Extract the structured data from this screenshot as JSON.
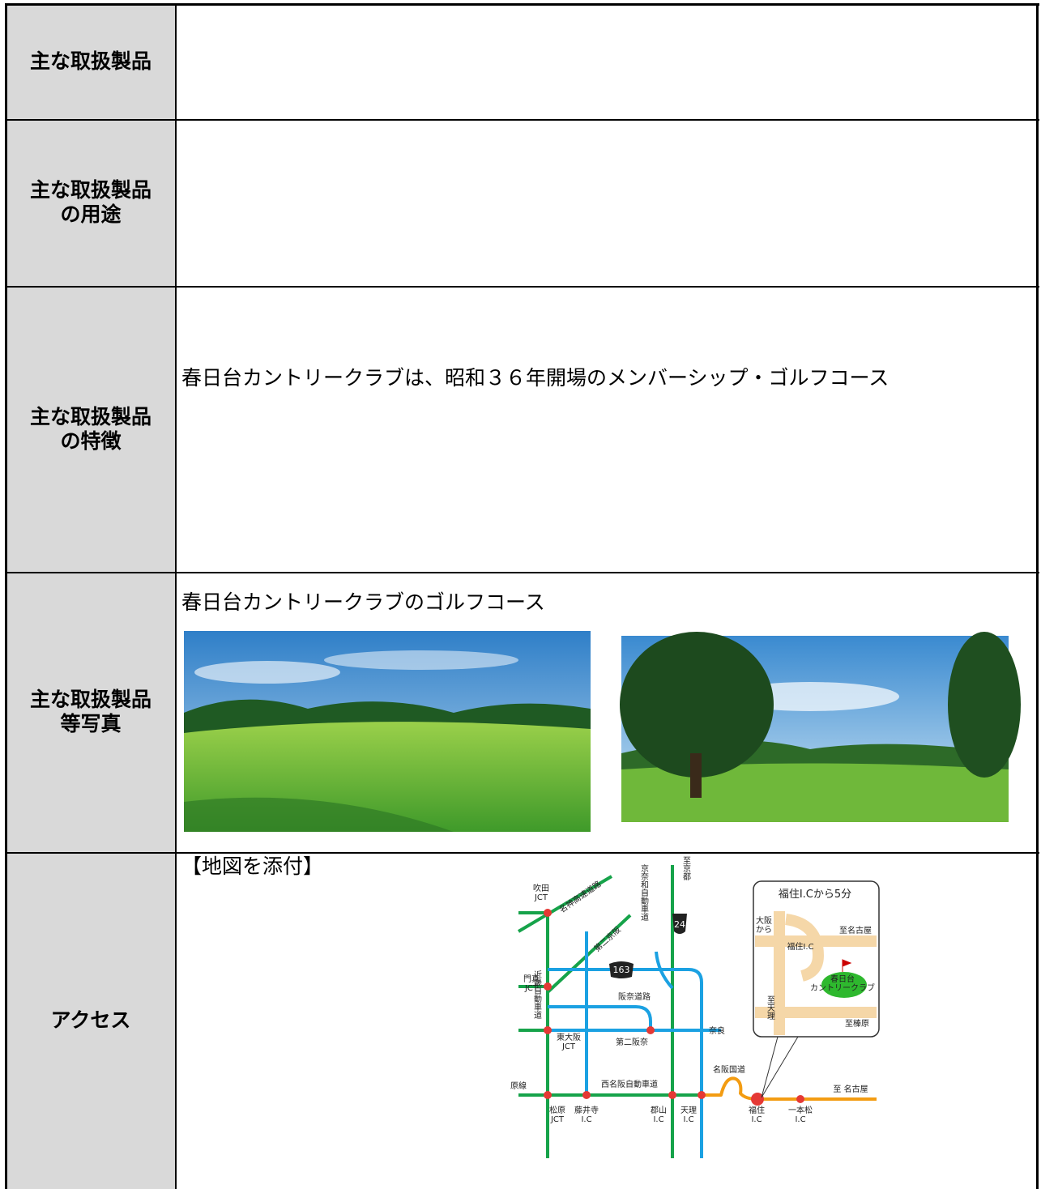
{
  "table": {
    "rows": [
      {
        "header": [
          "主な取扱製品"
        ]
      },
      {
        "header": [
          "主な取扱製品",
          "の用途"
        ]
      },
      {
        "header": [
          "主な取扱製品",
          "の特徴"
        ],
        "text": "春日台カントリークラブは、昭和３６年開場のメンバーシップ・ゴルフコース"
      },
      {
        "header": [
          "主な取扱製品",
          "等写真"
        ],
        "text": "春日台カントリークラブのゴルフコース"
      },
      {
        "header": [
          "アクセス"
        ],
        "text": "【地図を添付】"
      }
    ]
  },
  "map": {
    "labels": [
      [
        "至京都"
      ],
      [
        "吹田",
        "JCT"
      ],
      [
        "名神高速道路"
      ],
      [
        "京奈和自動車道"
      ],
      [
        "24"
      ],
      [
        "第二京阪"
      ],
      [
        "163"
      ],
      [
        "門真",
        "JCT"
      ],
      [
        "阪奈道路"
      ],
      [
        "近畿自動車道"
      ],
      [
        "東大阪",
        "JCT"
      ],
      [
        "第二阪奈"
      ],
      [
        "奈良"
      ],
      [
        "名阪国道"
      ],
      [
        "西名阪自動車道"
      ],
      [
        "原線"
      ],
      [
        "松原",
        "JCT"
      ],
      [
        "藤井寺",
        "I.C"
      ],
      [
        "郡山",
        "I.C"
      ],
      [
        "天理",
        "I.C"
      ],
      [
        "福住",
        "I.C"
      ],
      [
        "一本松",
        "I.C"
      ],
      [
        "至 名古屋"
      ],
      [
        "福住I.Cから5分"
      ],
      [
        "大阪",
        "から"
      ],
      [
        "至名古屋"
      ],
      [
        "福住I.C"
      ],
      [
        "春日台",
        "カントリークラブ"
      ],
      [
        "至天理"
      ],
      [
        "至榛原"
      ]
    ]
  }
}
